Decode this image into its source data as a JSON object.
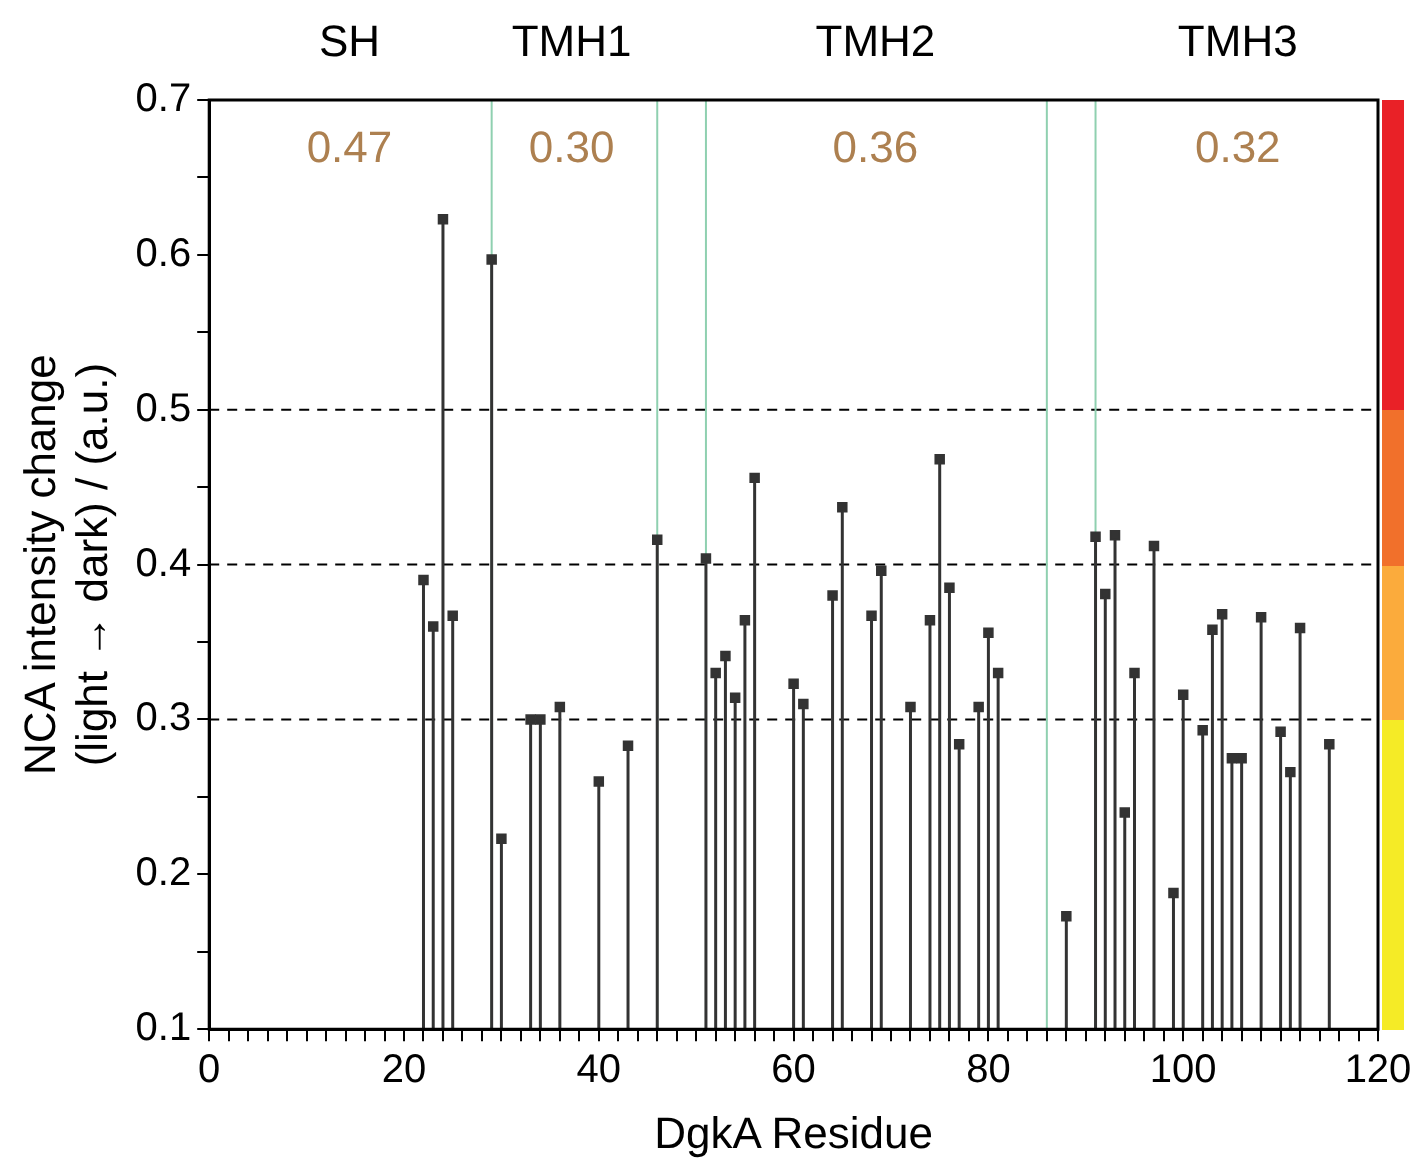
{
  "chart_data": {
    "type": "lollipop",
    "xlabel": "DgkA Residue",
    "ylabel": "NCA intensity change\n(light → dark) / (a.u.)",
    "x": [
      22,
      23,
      24,
      25,
      29,
      30,
      33,
      34,
      36,
      40,
      43,
      46,
      51,
      52,
      53,
      54,
      55,
      56,
      60,
      61,
      64,
      65,
      68,
      69,
      72,
      74,
      75,
      76,
      77,
      79,
      80,
      81,
      88,
      91,
      92,
      93,
      94,
      95,
      97,
      99,
      100,
      102,
      103,
      104,
      105,
      106,
      108,
      110,
      111,
      112,
      115
    ],
    "series": [
      {
        "color": "#333333",
        "values": [
          0.39,
          0.36,
          0.623,
          0.367,
          0.597,
          0.223,
          0.3,
          0.3,
          0.308,
          0.26,
          0.283,
          0.416,
          0.404,
          0.33,
          0.341,
          0.314,
          0.364,
          0.456,
          0.323,
          0.31,
          0.38,
          0.437,
          0.367,
          0.396,
          0.308,
          0.364,
          0.468,
          0.385,
          0.284,
          0.308,
          0.356,
          0.33,
          0.173,
          0.418,
          0.381,
          0.419,
          0.24,
          0.33,
          0.412,
          0.188,
          0.316,
          0.293,
          0.358,
          0.368,
          0.275,
          0.275,
          0.366,
          0.292,
          0.266,
          0.359,
          0.284
        ]
      }
    ],
    "marker": "square",
    "grid": false,
    "legend": false,
    "xlim": [
      0,
      120
    ],
    "xticks": [
      0,
      {
        "value": 2,
        "label": null
      },
      {
        "value": 4,
        "label": null
      },
      {
        "value": 6,
        "label": null
      },
      {
        "value": 8,
        "label": null
      },
      {
        "value": 10,
        "label": null
      },
      {
        "value": 12,
        "label": null
      },
      {
        "value": 14,
        "label": null
      },
      {
        "value": 16,
        "label": null
      },
      {
        "value": 18,
        "label": null
      },
      20,
      {
        "value": 22,
        "label": null
      },
      {
        "value": 24,
        "label": null
      },
      {
        "value": 26,
        "label": null
      },
      {
        "value": 28,
        "label": null
      },
      {
        "value": 30,
        "label": null
      },
      {
        "value": 32,
        "label": null
      },
      {
        "value": 34,
        "label": null
      },
      {
        "value": 36,
        "label": null
      },
      {
        "value": 38,
        "label": null
      },
      40,
      {
        "value": 42,
        "label": null
      },
      {
        "value": 44,
        "label": null
      },
      {
        "value": 46,
        "label": null
      },
      {
        "value": 48,
        "label": null
      },
      {
        "value": 50,
        "label": null
      },
      {
        "value": 52,
        "label": null
      },
      {
        "value": 54,
        "label": null
      },
      {
        "value": 56,
        "label": null
      },
      {
        "value": 58,
        "label": null
      },
      60,
      {
        "value": 62,
        "label": null
      },
      {
        "value": 64,
        "label": null
      },
      {
        "value": 66,
        "label": null
      },
      {
        "value": 68,
        "label": null
      },
      {
        "value": 70,
        "label": null
      },
      {
        "value": 72,
        "label": null
      },
      {
        "value": 74,
        "label": null
      },
      {
        "value": 76,
        "label": null
      },
      {
        "value": 78,
        "label": null
      },
      80,
      {
        "value": 82,
        "label": null
      },
      {
        "value": 84,
        "label": null
      },
      {
        "value": 86,
        "label": null
      },
      {
        "value": 88,
        "label": null
      },
      {
        "value": 90,
        "label": null
      },
      {
        "value": 92,
        "label": null
      },
      {
        "value": 94,
        "label": null
      },
      {
        "value": 96,
        "label": null
      },
      {
        "value": 98,
        "label": null
      },
      100,
      {
        "value": 102,
        "label": null
      },
      {
        "value": 104,
        "label": null
      },
      {
        "value": 106,
        "label": null
      },
      {
        "value": 108,
        "label": null
      },
      {
        "value": 110,
        "label": null
      },
      {
        "value": 112,
        "label": null
      },
      {
        "value": 114,
        "label": null
      },
      {
        "value": 116,
        "label": null
      },
      {
        "value": 118,
        "label": null
      },
      120
    ],
    "ylim": [
      0.1,
      0.7
    ],
    "yticks": [
      0.1,
      {
        "value": 0.15,
        "label": null
      },
      0.2,
      {
        "value": 0.25,
        "label": null
      },
      0.3,
      {
        "value": 0.35,
        "label": null
      },
      0.4,
      {
        "value": 0.45,
        "label": null
      },
      0.5,
      {
        "value": 0.55,
        "label": null
      },
      0.6,
      {
        "value": 0.65,
        "label": null
      },
      0.7
    ],
    "ref_lines": [
      {
        "axis": "y",
        "value": 0.3,
        "color": "#000000",
        "line_style": "dashed"
      },
      {
        "axis": "y",
        "value": 0.4,
        "color": "#000000",
        "line_style": "dashed"
      },
      {
        "axis": "y",
        "value": 0.5,
        "color": "#000000",
        "line_style": "dashed"
      },
      {
        "axis": "x",
        "value": 29,
        "color": "#8fd0b0",
        "line_style": "solid"
      },
      {
        "axis": "x",
        "value": 46,
        "color": "#8fd0b0",
        "line_style": "solid"
      },
      {
        "axis": "x",
        "value": 51,
        "color": "#8fd0b0",
        "line_style": "solid"
      },
      {
        "axis": "x",
        "value": 86,
        "color": "#8fd0b0",
        "line_style": "solid"
      },
      {
        "axis": "x",
        "value": 91,
        "color": "#8fd0b0",
        "line_style": "solid"
      }
    ],
    "annotations": [
      "SH",
      "TMH1",
      "TMH2",
      "TMH3",
      "0.47",
      "0.30",
      "0.36",
      "0.32"
    ]
  }
}
